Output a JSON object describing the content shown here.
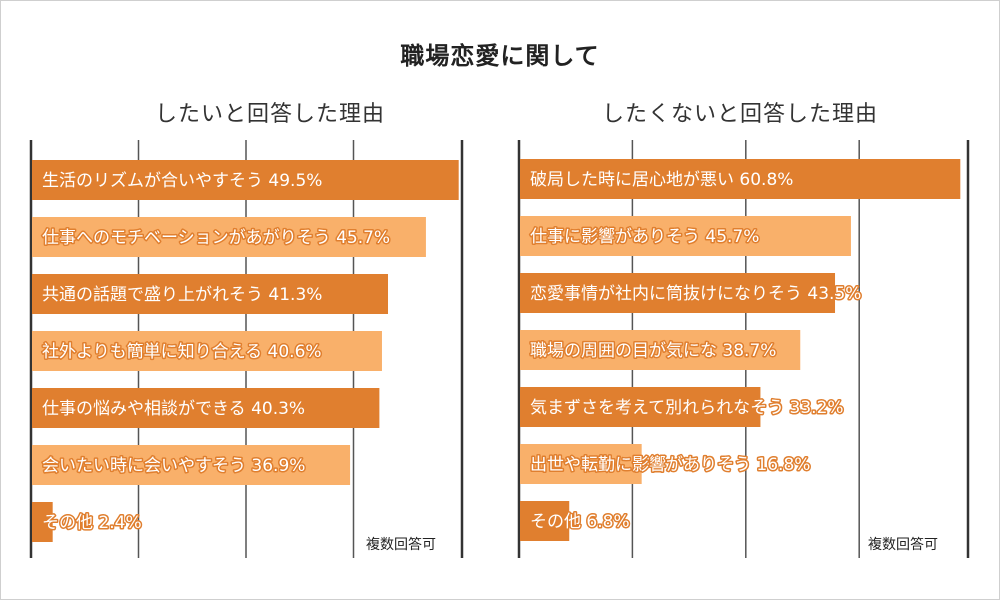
{
  "title": "職場恋愛に関して",
  "note": "複数回答可",
  "colors": {
    "dark": "#e07f2f",
    "light": "#f9b06a",
    "grid": "#555555",
    "axis": "#333333",
    "label_outline": "#e07f2f"
  },
  "chart_data": [
    {
      "type": "bar",
      "orientation": "horizontal",
      "title": "したいと回答した理由",
      "xlim": [
        0,
        50
      ],
      "grid": true,
      "note": "複数回答可",
      "categories": [
        "生活のリズムが合いやすそう",
        "仕事へのモチベーションがあがりそう",
        "共通の話題で盛り上がれそう",
        "社外よりも簡単に知り合える",
        "仕事の悩みや相談ができる",
        "会いたい時に会いやすそう",
        "その他"
      ],
      "values": [
        49.5,
        45.7,
        41.3,
        40.6,
        40.3,
        36.9,
        2.4
      ],
      "labels": [
        "生活のリズムが合いやすそう 49.5%",
        "仕事へのモチベーションがあがりそう 45.7%",
        "共通の話題で盛り上がれそう 41.3%",
        "社外よりも簡単に知り合える 40.6%",
        "仕事の悩みや相談ができる 40.3%",
        "会いたい時に会いやすそう 36.9%",
        "その他 2.4%"
      ]
    },
    {
      "type": "bar",
      "orientation": "horizontal",
      "title": "したくないと回答した理由",
      "xlim": [
        0,
        62
      ],
      "grid": true,
      "note": "複数回答可",
      "categories": [
        "破局した時に居心地が悪い",
        "仕事に影響がありそう",
        "恋愛事情が社内に筒抜けになりそう",
        "職場の周囲の目が気にな",
        "気まずさを考えて別れられなそう",
        "出世や転勤に影響がありそう",
        "その他"
      ],
      "values": [
        60.8,
        45.7,
        43.5,
        38.7,
        33.2,
        16.8,
        6.8
      ],
      "labels": [
        "破局した時に居心地が悪い 60.8%",
        "仕事に影響がありそう 45.7%",
        "恋愛事情が社内に筒抜けになりそう 43.5%",
        "職場の周囲の目が気にな 38.7%",
        "気まずさを考えて別れられなそう 33.2%",
        "出世や転勤に影響がありそう 16.8%",
        "その他 6.8%"
      ]
    }
  ]
}
